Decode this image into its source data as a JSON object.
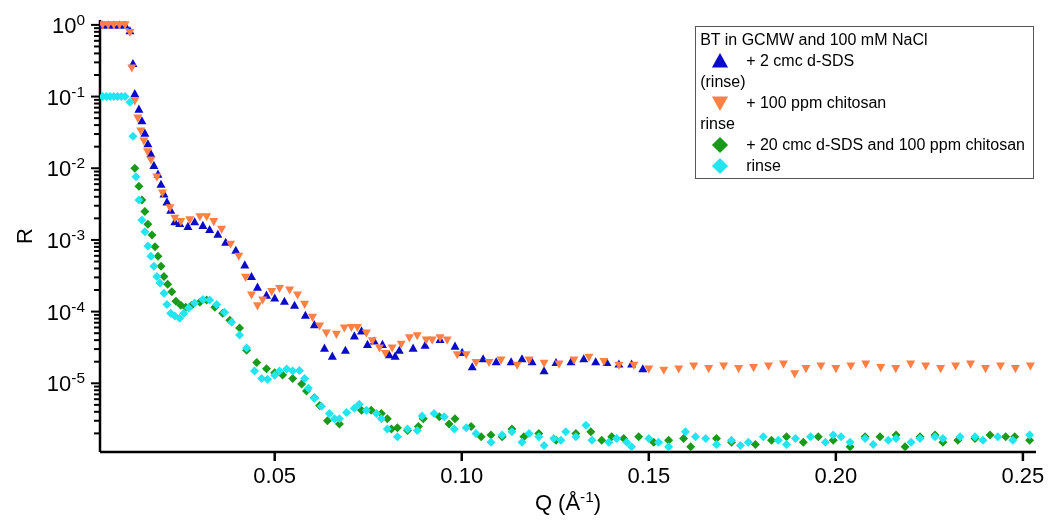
{
  "chart_data": {
    "type": "scatter",
    "xlabel": "Q (Å$^{-1}$)",
    "ylabel": "R",
    "legend_title": "BT in GCMW and 100 mM NaCl",
    "annotations": [
      "(rinse)",
      "rinse"
    ],
    "log": "y",
    "legend": "top right",
    "xlim": [
      0.0033,
      0.2535
    ],
    "xticks": [
      0.05,
      {
        "value": 0.1,
        "label": "0.10"
      },
      0.15,
      {
        "value": 0.2,
        "label": "0.20"
      },
      0.25
    ],
    "ylim": [
      1.1e-06,
      1.17
    ],
    "yticks": [
      {
        "value": 1,
        "label": "10$^{0}$"
      },
      {
        "value": 0.1,
        "label": "10$^{-1}$"
      },
      {
        "value": 0.01,
        "label": "10$^{-2}$"
      },
      {
        "value": 0.001,
        "label": "10$^{-3}$"
      },
      {
        "value": 0.0001,
        "label": "10$^{-4}$"
      },
      {
        "value": 1e-05,
        "label": "10$^{-5}$"
      },
      {
        "value": 2e-06,
        "label": null
      },
      {
        "value": 3e-06,
        "label": null
      },
      {
        "value": 4e-06,
        "label": null
      },
      {
        "value": 5e-06,
        "label": null
      },
      {
        "value": 6e-06,
        "label": null
      },
      {
        "value": 7e-06,
        "label": null
      },
      {
        "value": 8e-06,
        "label": null
      },
      {
        "value": 9e-06,
        "label": null
      },
      {
        "value": 2e-05,
        "label": null
      },
      {
        "value": 3e-05,
        "label": null
      },
      {
        "value": 4e-05,
        "label": null
      },
      {
        "value": 5e-05,
        "label": null
      },
      {
        "value": 6e-05,
        "label": null
      },
      {
        "value": 7e-05,
        "label": null
      },
      {
        "value": 8e-05,
        "label": null
      },
      {
        "value": 9e-05,
        "label": null
      },
      {
        "value": 0.0002,
        "label": null
      },
      {
        "value": 0.0003,
        "label": null
      },
      {
        "value": 0.0004,
        "label": null
      },
      {
        "value": 0.0005,
        "label": null
      },
      {
        "value": 0.0006,
        "label": null
      },
      {
        "value": 0.0007,
        "label": null
      },
      {
        "value": 0.0008,
        "label": null
      },
      {
        "value": 0.0009,
        "label": null
      },
      {
        "value": 0.002,
        "label": null
      },
      {
        "value": 0.003,
        "label": null
      },
      {
        "value": 0.004,
        "label": null
      },
      {
        "value": 0.005,
        "label": null
      },
      {
        "value": 0.006,
        "label": null
      },
      {
        "value": 0.007,
        "label": null
      },
      {
        "value": 0.008,
        "label": null
      },
      {
        "value": 0.009,
        "label": null
      },
      {
        "value": 0.02,
        "label": null
      },
      {
        "value": 0.03,
        "label": null
      },
      {
        "value": 0.04,
        "label": null
      },
      {
        "value": 0.05,
        "label": null
      },
      {
        "value": 0.06,
        "label": null
      },
      {
        "value": 0.07,
        "label": null
      },
      {
        "value": 0.08,
        "label": null
      },
      {
        "value": 0.09,
        "label": null
      },
      {
        "value": 0.2,
        "label": null
      },
      {
        "value": 0.3,
        "label": null
      },
      {
        "value": 0.4,
        "label": null
      },
      {
        "value": 0.5,
        "label": null
      },
      {
        "value": 0.6,
        "label": null
      },
      {
        "value": 0.7,
        "label": null
      },
      {
        "value": 0.8,
        "label": null
      },
      {
        "value": 0.9,
        "label": null
      }
    ],
    "series": [
      {
        "name": "+ 2 cmc d-SDS",
        "color": "#0a0ac8",
        "marker": "triangle",
        "x": [
          0.004,
          0.0055,
          0.007,
          0.0085,
          0.01,
          0.0113,
          0.0121,
          0.0126,
          0.0137,
          0.0145,
          0.0153,
          0.0161,
          0.0169,
          0.0177,
          0.0188,
          0.0196,
          0.0204,
          0.0212,
          0.0222,
          0.0233,
          0.0246,
          0.0268,
          0.0286,
          0.0308,
          0.0326,
          0.0348,
          0.0369,
          0.0396,
          0.042,
          0.0438,
          0.0454,
          0.0478,
          0.05,
          0.0526,
          0.0553,
          0.0582,
          0.0606,
          0.0633,
          0.0654,
          0.0689,
          0.0713,
          0.0732,
          0.0748,
          0.0766,
          0.0788,
          0.0806,
          0.0822,
          0.0833,
          0.087,
          0.0902,
          0.0942,
          0.0982,
          0.1001,
          0.1028,
          0.1057,
          0.1092,
          0.1132,
          0.1161,
          0.1188,
          0.122,
          0.1252,
          0.1292,
          0.1326,
          0.1358,
          0.1388,
          0.142,
          0.1454,
          0.1484
        ],
        "values": [
          1,
          1,
          1,
          1,
          1,
          0.83,
          0.29,
          0.11,
          0.067,
          0.046,
          0.031,
          0.022,
          0.016,
          0.011,
          0.0083,
          0.006,
          0.0044,
          0.0034,
          0.0026,
          0.0018,
          0.0017,
          0.00155,
          0.0018,
          0.0016,
          0.0014,
          0.0012,
          0.00093,
          0.00072,
          0.00045,
          0.00031,
          0.00022,
          0.00017,
          0.000155,
          0.00014,
          0.000123,
          8.9e-05,
          6.6e-05,
          3.1e-05,
          2.4e-05,
          2.9e-05,
          4.6e-05,
          5.4e-05,
          3.5e-05,
          3.9e-05,
          3.5e-05,
          2.5e-05,
          2.4e-05,
          2.9e-05,
          3.1e-05,
          3.4e-05,
          4.1e-05,
          3.3e-05,
          2.7e-05,
          1.7e-05,
          2.2e-05,
          2e-05,
          2e-05,
          2.2e-05,
          2e-05,
          1.5e-05,
          1.95e-05,
          2e-05,
          2.2e-05,
          2e-05,
          1.95e-05,
          1.86e-05,
          1.86e-05,
          1.6e-05
        ]
      },
      {
        "name": "+ 100 ppm chitosan",
        "color": "#ff7f45",
        "marker": "triangle-down",
        "x": [
          0.004,
          0.0055,
          0.007,
          0.0085,
          0.01,
          0.0113,
          0.0118,
          0.0126,
          0.0134,
          0.0142,
          0.015,
          0.016,
          0.0169,
          0.0185,
          0.02,
          0.022,
          0.0233,
          0.0249,
          0.0273,
          0.03,
          0.0318,
          0.0337,
          0.0358,
          0.0382,
          0.0404,
          0.0422,
          0.0438,
          0.0454,
          0.0468,
          0.0492,
          0.0513,
          0.054,
          0.0561,
          0.058,
          0.0601,
          0.062,
          0.0638,
          0.0665,
          0.0686,
          0.0705,
          0.0721,
          0.0745,
          0.0761,
          0.078,
          0.0796,
          0.0814,
          0.0838,
          0.086,
          0.0881,
          0.0905,
          0.0921,
          0.0942,
          0.0961,
          0.0988,
          0.1012,
          0.1038,
          0.1073,
          0.1105,
          0.1148,
          0.118,
          0.122,
          0.126,
          0.13,
          0.134,
          0.138,
          0.142,
          0.146,
          0.15,
          0.154,
          0.158,
          0.162,
          0.166,
          0.17,
          0.174,
          0.178,
          0.182,
          0.186,
          0.189,
          0.192,
          0.196,
          0.2,
          0.204,
          0.208,
          0.212,
          0.216,
          0.22,
          0.224,
          0.228,
          0.232,
          0.236,
          0.24,
          0.244,
          0.248,
          0.252
        ],
        "values": [
          1,
          1,
          1,
          1,
          1,
          0.78,
          0.25,
          0.087,
          0.05,
          0.033,
          0.024,
          0.017,
          0.013,
          0.0075,
          0.0045,
          0.0028,
          0.002,
          0.0018,
          0.0019,
          0.0021,
          0.0021,
          0.0018,
          0.0014,
          0.00087,
          0.00059,
          0.0003,
          0.00017,
          0.00012,
          0.000145,
          0.00019,
          0.00021,
          0.0002,
          0.00017,
          0.000126,
          8.3e-05,
          6.3e-05,
          5e-05,
          4.8e-05,
          5.9e-05,
          6e-05,
          6e-05,
          5e-05,
          3.9e-05,
          3.1e-05,
          2.6e-05,
          3.1e-05,
          3.5e-05,
          4.3e-05,
          4.6e-05,
          4e-05,
          4e-05,
          4.3e-05,
          4e-05,
          2.5e-05,
          2.5e-05,
          1.95e-05,
          1.95e-05,
          2.1e-05,
          1.78e-05,
          2.1e-05,
          1.9e-05,
          1.85e-05,
          2.1e-05,
          2.3e-05,
          2e-05,
          1.78e-05,
          1.78e-05,
          1.58e-05,
          1.52e-05,
          1.58e-05,
          1.74e-05,
          1.6e-05,
          1.74e-05,
          1.6e-05,
          1.65e-05,
          1.74e-05,
          1.85e-05,
          1.35e-05,
          1.6e-05,
          1.74e-05,
          1.6e-05,
          1.74e-05,
          1.85e-05,
          1.65e-05,
          1.6e-05,
          1.85e-05,
          1.74e-05,
          1.6e-05,
          1.74e-05,
          1.85e-05,
          1.6e-05,
          1.74e-05,
          1.6e-05,
          1.74e-05
        ]
      },
      {
        "name": "+ 20 cmc d-SDS and 100 ppm chitosan",
        "color": "#1a9a1a",
        "marker": "diamond",
        "x": [
          0.0126,
          0.0137,
          0.0145,
          0.0153,
          0.0161,
          0.0172,
          0.018,
          0.0188,
          0.0196,
          0.0204,
          0.0214,
          0.0225,
          0.0236,
          0.0249,
          0.0262,
          0.0278,
          0.03,
          0.0318,
          0.034,
          0.0361,
          0.038,
          0.0406,
          0.0425,
          0.0452,
          0.0478,
          0.05,
          0.0521,
          0.0548,
          0.0572,
          0.0585,
          0.0606,
          0.062,
          0.0641,
          0.0673,
          0.0732,
          0.0758,
          0.0785,
          0.0801,
          0.0812,
          0.0828,
          0.0855,
          0.0884,
          0.0897,
          0.094,
          0.0966,
          0.0982,
          0.1025,
          0.1052,
          0.1078,
          0.1108,
          0.1134,
          0.1166,
          0.1206,
          0.1252,
          0.1305,
          0.1345,
          0.1374,
          0.1401,
          0.1433,
          0.1473,
          0.1513,
          0.1553,
          0.1593,
          0.1612,
          0.1681,
          0.1721,
          0.1785,
          0.1828,
          0.1868,
          0.1913,
          0.1953,
          0.1993,
          0.2038,
          0.2078,
          0.2118,
          0.2161,
          0.2185,
          0.2225,
          0.2265,
          0.2286,
          0.2326,
          0.2372,
          0.2412,
          0.2454,
          0.2478,
          0.2518
        ],
        "values": [
          0.01,
          0.0056,
          0.0036,
          0.0025,
          0.00166,
          0.00117,
          0.0008,
          0.00059,
          0.00043,
          0.00031,
          0.00024,
          0.00019,
          0.00014,
          0.000123,
          0.000115,
          0.000123,
          0.000135,
          0.000145,
          0.000115,
          9.5e-05,
          7.6e-05,
          5.9e-05,
          2.9e-05,
          1.95e-05,
          1.6e-05,
          1.4e-05,
          1.3e-05,
          1.17e-05,
          9.8e-06,
          7.8e-06,
          6.3e-06,
          4.9e-06,
          3e-06,
          2.7e-06,
          4.2e-06,
          4.2e-06,
          3.8e-06,
          3.2e-06,
          2.3e-06,
          2.4e-06,
          2.2e-06,
          2.5e-06,
          3.2e-06,
          3.4e-06,
          2.7e-06,
          3.2e-06,
          2.5e-06,
          1.8e-06,
          1.9e-06,
          1.8e-06,
          2.3e-06,
          1.8e-06,
          2e-06,
          1.6e-06,
          2e-06,
          2.1e-06,
          1.6e-06,
          1.8e-06,
          1.7e-06,
          1.8e-06,
          1.5e-06,
          1.6e-06,
          1.7e-06,
          1.3e-06,
          1.7e-06,
          1.5e-06,
          1.4e-06,
          1.6e-06,
          1.8e-06,
          1.5e-06,
          1.8e-06,
          1.6e-06,
          1.3e-06,
          1.8e-06,
          1.8e-06,
          1.9e-06,
          1.3e-06,
          1.8e-06,
          1.9e-06,
          1.5e-06,
          1.6e-06,
          1.7e-06,
          1.9e-06,
          1.8e-06,
          1.8e-06,
          1.6e-06
        ]
      },
      {
        "name": "rinse",
        "color": "#22e5f0",
        "marker": "diamond",
        "x": [
          0.004,
          0.005,
          0.006,
          0.007,
          0.008,
          0.009,
          0.01,
          0.0113,
          0.0121,
          0.0129,
          0.0137,
          0.0145,
          0.0153,
          0.0161,
          0.0169,
          0.0177,
          0.0185,
          0.0193,
          0.0204,
          0.0212,
          0.0222,
          0.0233,
          0.0246,
          0.0257,
          0.027,
          0.0286,
          0.0308,
          0.0326,
          0.0345,
          0.0366,
          0.0385,
          0.0406,
          0.0425,
          0.0446,
          0.0465,
          0.0481,
          0.05,
          0.0513,
          0.0532,
          0.0548,
          0.0566,
          0.058,
          0.059,
          0.0606,
          0.0625,
          0.0646,
          0.066,
          0.0673,
          0.0692,
          0.0713,
          0.0726,
          0.0745,
          0.0772,
          0.0785,
          0.0801,
          0.0828,
          0.0855,
          0.0881,
          0.0894,
          0.0926,
          0.0953,
          0.098,
          0.1012,
          0.1038,
          0.1078,
          0.1108,
          0.1134,
          0.1161,
          0.118,
          0.1206,
          0.122,
          0.1246,
          0.1265,
          0.1278,
          0.1305,
          0.1332,
          0.1348,
          0.1393,
          0.1414,
          0.1441,
          0.1454,
          0.15,
          0.1526,
          0.1553,
          0.1598,
          0.1625,
          0.1652,
          0.1681,
          0.1721,
          0.1745,
          0.1766,
          0.1806,
          0.1846,
          0.1868,
          0.1892,
          0.1932,
          0.1972,
          0.1993,
          0.2014,
          0.2038,
          0.2078,
          0.21,
          0.214,
          0.2161,
          0.2201,
          0.2225,
          0.2265,
          0.2286,
          0.2332,
          0.2372,
          0.2393,
          0.2433,
          0.2473,
          0.2518
        ],
        "values": [
          0.1,
          0.1,
          0.1,
          0.1,
          0.1,
          0.1,
          0.1,
          0.083,
          0.028,
          0.0076,
          0.0036,
          0.0019,
          0.0013,
          0.00082,
          0.00059,
          0.00043,
          0.00031,
          0.00025,
          0.00018,
          0.000126,
          9.5e-05,
          8.7e-05,
          8.1e-05,
          9.5e-05,
          0.000112,
          0.000132,
          0.000148,
          0.000145,
          0.000126,
          9.8e-05,
          7.1e-05,
          4.7e-05,
          3.1e-05,
          1.48e-05,
          1.17e-05,
          1.14e-05,
          1.29e-05,
          1.48e-05,
          1.58e-05,
          1.48e-05,
          1.51e-05,
          1.17e-05,
          8.5e-06,
          6.2e-06,
          4.8e-06,
          3.8e-06,
          3.2e-06,
          3.2e-06,
          3.9e-06,
          4.5e-06,
          5.1e-06,
          4.2e-06,
          3.8e-06,
          3.2e-06,
          2.3e-06,
          1.8e-06,
          2.3e-06,
          2.2e-06,
          3.5e-06,
          3.8e-06,
          3.4e-06,
          2.3e-06,
          2.4e-06,
          2e-06,
          1.5e-06,
          1.9e-06,
          2.1e-06,
          1.5e-06,
          2e-06,
          1.8e-06,
          1.35e-06,
          1.7e-06,
          1.6e-06,
          2.1e-06,
          1.8e-06,
          2.6e-06,
          1.6e-06,
          1.5e-06,
          1.7e-06,
          1.5e-06,
          1.3e-06,
          1.7e-06,
          1.5e-06,
          1.3e-06,
          2.1e-06,
          1.8e-06,
          1.7e-06,
          1.4e-06,
          1.6e-06,
          1.35e-06,
          1.5e-06,
          1.8e-06,
          1.6e-06,
          1.4e-06,
          1.7e-06,
          1.8e-06,
          1.5e-06,
          1.9e-06,
          1.8e-06,
          1.5e-06,
          1.7e-06,
          1.4e-06,
          1.6e-06,
          1.7e-06,
          1.5e-06,
          1.7e-06,
          1.8e-06,
          1.7e-06,
          1.8e-06,
          1.8e-06,
          1.6e-06,
          1.8e-06,
          1.6e-06,
          1.9e-06
        ]
      }
    ]
  }
}
